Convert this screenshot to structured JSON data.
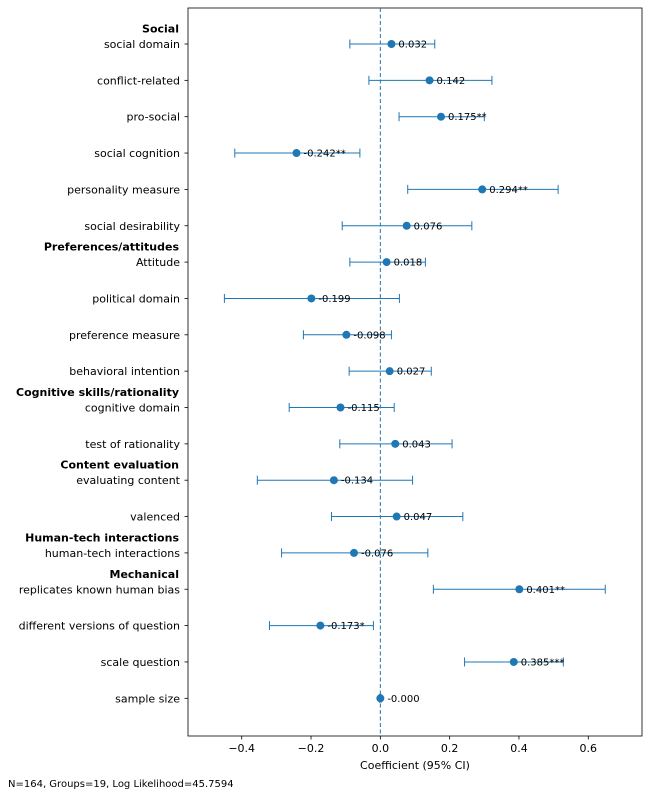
{
  "chart_data": {
    "type": "forest",
    "xlabel": "Coefficient (95% CI)",
    "xlim": [
      -0.555,
      0.755
    ],
    "xticks": [
      -0.4,
      -0.2,
      0.0,
      0.2,
      0.4,
      0.6
    ],
    "xtick_labels": [
      "−0.4",
      "−0.2",
      "0.0",
      "0.2",
      "0.4",
      "0.6"
    ],
    "reference_line": 0,
    "series_color": "#1f77b4",
    "group_labels": [
      {
        "name": "Social",
        "before_row": 0
      },
      {
        "name": "Preferences/attitudes",
        "before_row": 6
      },
      {
        "name": "Cognitive skills/rationality",
        "before_row": 10
      },
      {
        "name": "Content evaluation",
        "before_row": 12
      },
      {
        "name": "Human-tech interactions",
        "before_row": 14
      },
      {
        "name": "Mechanical",
        "before_row": 15
      }
    ],
    "rows": [
      {
        "label": "social domain",
        "coef": 0.032,
        "lo": -0.088,
        "hi": 0.157,
        "text": "0.032"
      },
      {
        "label": "conflict-related",
        "coef": 0.142,
        "lo": -0.033,
        "hi": 0.322,
        "text": "0.142"
      },
      {
        "label": "pro-social",
        "coef": 0.175,
        "lo": 0.054,
        "hi": 0.3,
        "text": "0.175**"
      },
      {
        "label": "social cognition",
        "coef": -0.242,
        "lo": -0.42,
        "hi": -0.059,
        "text": "-0.242**"
      },
      {
        "label": "personality measure",
        "coef": 0.294,
        "lo": 0.079,
        "hi": 0.513,
        "text": "0.294**"
      },
      {
        "label": "social desirability",
        "coef": 0.076,
        "lo": -0.11,
        "hi": 0.264,
        "text": "0.076"
      },
      {
        "label": "Attitude",
        "coef": 0.018,
        "lo": -0.088,
        "hi": 0.13,
        "text": "0.018"
      },
      {
        "label": "political domain",
        "coef": -0.199,
        "lo": -0.45,
        "hi": 0.055,
        "text": "-0.199"
      },
      {
        "label": "preference measure",
        "coef": -0.098,
        "lo": -0.222,
        "hi": 0.032,
        "text": "-0.098"
      },
      {
        "label": "behavioral intention",
        "coef": 0.027,
        "lo": -0.09,
        "hi": 0.147,
        "text": "0.027"
      },
      {
        "label": "cognitive domain",
        "coef": -0.115,
        "lo": -0.263,
        "hi": 0.04,
        "text": "-0.115"
      },
      {
        "label": "test of rationality",
        "coef": 0.043,
        "lo": -0.117,
        "hi": 0.207,
        "text": "0.043"
      },
      {
        "label": "evaluating content",
        "coef": -0.134,
        "lo": -0.355,
        "hi": 0.093,
        "text": "-0.134"
      },
      {
        "label": "valenced",
        "coef": 0.047,
        "lo": -0.141,
        "hi": 0.238,
        "text": "0.047"
      },
      {
        "label": "human-tech interactions",
        "coef": -0.076,
        "lo": -0.285,
        "hi": 0.137,
        "text": "-0.076"
      },
      {
        "label": "replicates known human bias",
        "coef": 0.401,
        "lo": 0.153,
        "hi": 0.649,
        "text": "0.401**"
      },
      {
        "label": "different versions of question",
        "coef": -0.173,
        "lo": -0.32,
        "hi": -0.02,
        "text": "-0.173*"
      },
      {
        "label": "scale question",
        "coef": 0.385,
        "lo": 0.243,
        "hi": 0.528,
        "text": "0.385***"
      },
      {
        "label": "sample size",
        "coef": -0.0,
        "lo": -0.002,
        "hi": 0.002,
        "text": "-0.000"
      }
    ]
  },
  "footnote": "N=164, Groups=19, Log Likelihood=45.7594"
}
